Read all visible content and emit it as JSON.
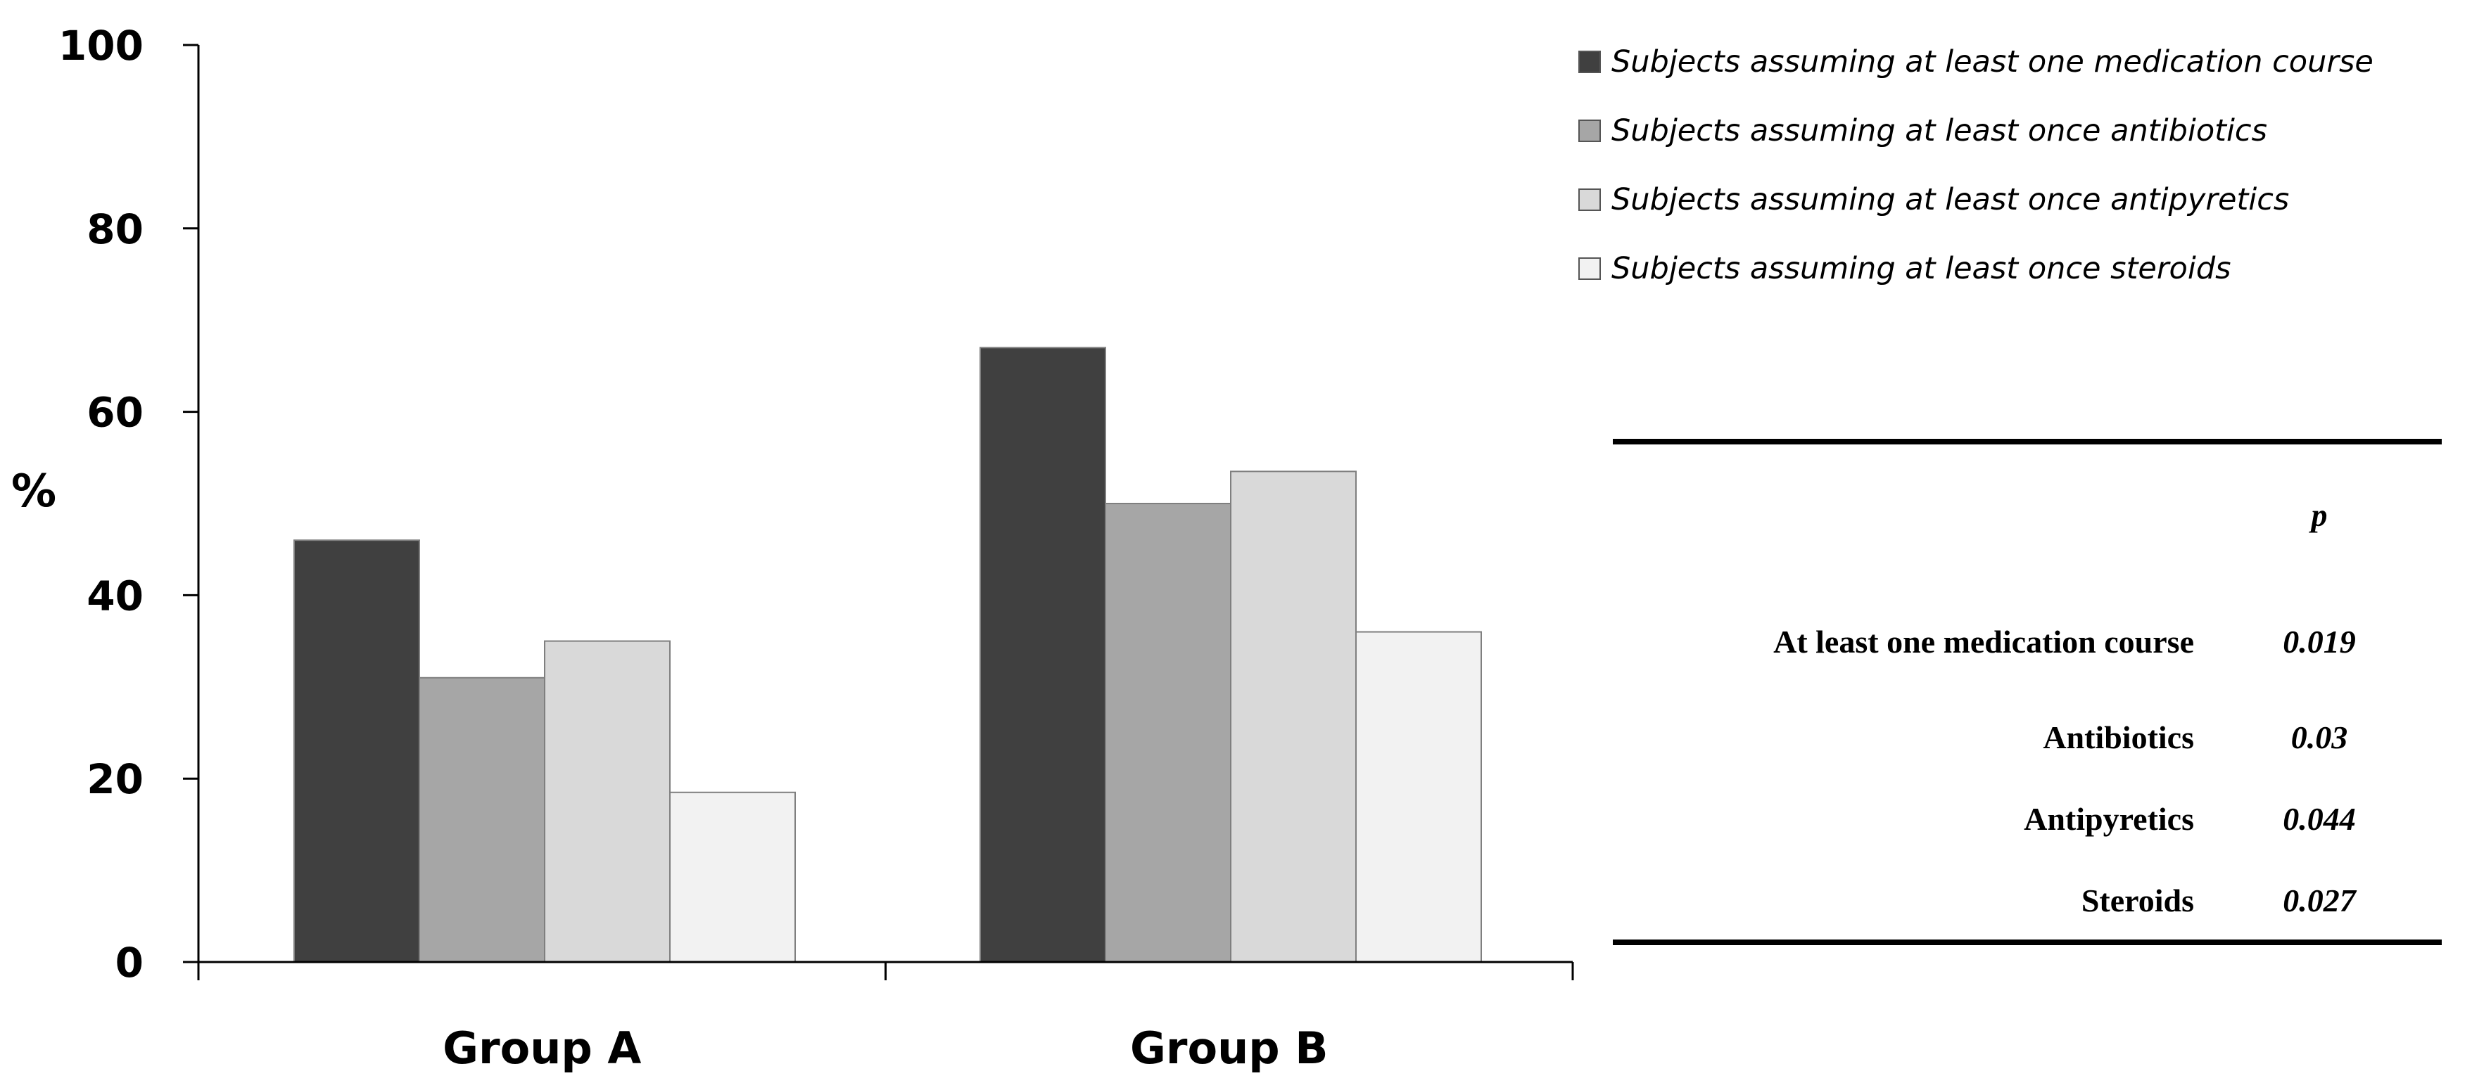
{
  "chart_data": {
    "type": "bar",
    "categories": [
      "Group A",
      "Group B"
    ],
    "series": [
      {
        "name": "Subjects assuming at least one medication course",
        "values": [
          46,
          67
        ],
        "color": "#404040"
      },
      {
        "name": "Subjects assuming at least once antibiotics",
        "values": [
          31,
          50
        ],
        "color": "#a6a6a6"
      },
      {
        "name": "Subjects assuming at least once antipyretics",
        "values": [
          35,
          53.5
        ],
        "color": "#d9d9d9"
      },
      {
        "name": "Subjects assuming at least once steroids",
        "values": [
          18.5,
          36
        ],
        "color": "#f2f2f2"
      }
    ],
    "ylabel": "%",
    "xlabel": "",
    "ylim": [
      0,
      100
    ],
    "yticks": [
      0,
      20,
      40,
      60,
      80,
      100
    ],
    "legend_position": "top-right",
    "grid": false
  },
  "table": {
    "header": "p",
    "rows": [
      {
        "label": "At least one medication  course",
        "value": "0.019"
      },
      {
        "label": "Antibiotics",
        "value": "0.03"
      },
      {
        "label": "Antipyretics",
        "value": "0.044"
      },
      {
        "label": "Steroids",
        "value": "0.027"
      }
    ]
  }
}
